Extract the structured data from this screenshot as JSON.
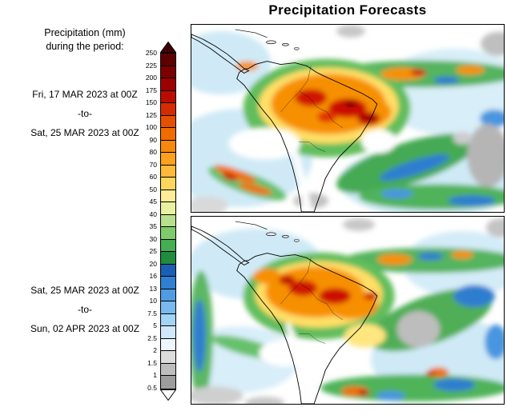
{
  "title": "Precipitation Forecasts",
  "legend": {
    "heading_line1": "Precipitation (mm)",
    "heading_line2": "during the period:",
    "ticks": [
      "250",
      "225",
      "200",
      "175",
      "150",
      "125",
      "100",
      "90",
      "80",
      "70",
      "60",
      "50",
      "45",
      "40",
      "35",
      "30",
      "25",
      "20",
      "16",
      "13",
      "10",
      "7.5",
      "5",
      "2.5",
      "2",
      "1.5",
      "1",
      "0.5"
    ],
    "cell_colors": [
      "#5e0000",
      "#7d0000",
      "#9c0000",
      "#ba0c00",
      "#d42c00",
      "#e55000",
      "#ef6c00",
      "#f8870e",
      "#ffa01e",
      "#ffba3c",
      "#ffd55e",
      "#ffec96",
      "#e8f2a2",
      "#b6e08e",
      "#7ecb6a",
      "#46ad52",
      "#1f8c40",
      "#1a5fb4",
      "#2f7fd2",
      "#509ce2",
      "#79b9ee",
      "#a3d4f6",
      "#cfe9fb",
      "#eef7fd",
      "#dcdcdc",
      "#bdbdbd",
      "#9d9d9d"
    ],
    "over_color": "#400000",
    "under_color": "#ffffff"
  },
  "panels": [
    {
      "start": "Fri, 17 MAR 2023 at 00Z",
      "separator": "-to-",
      "end": "Sat, 25 MAR 2023 at 00Z"
    },
    {
      "start": "Sat, 25 MAR 2023 at 00Z",
      "separator": "-to-",
      "end": "Sun, 02 APR 2023 at 00Z"
    }
  ]
}
